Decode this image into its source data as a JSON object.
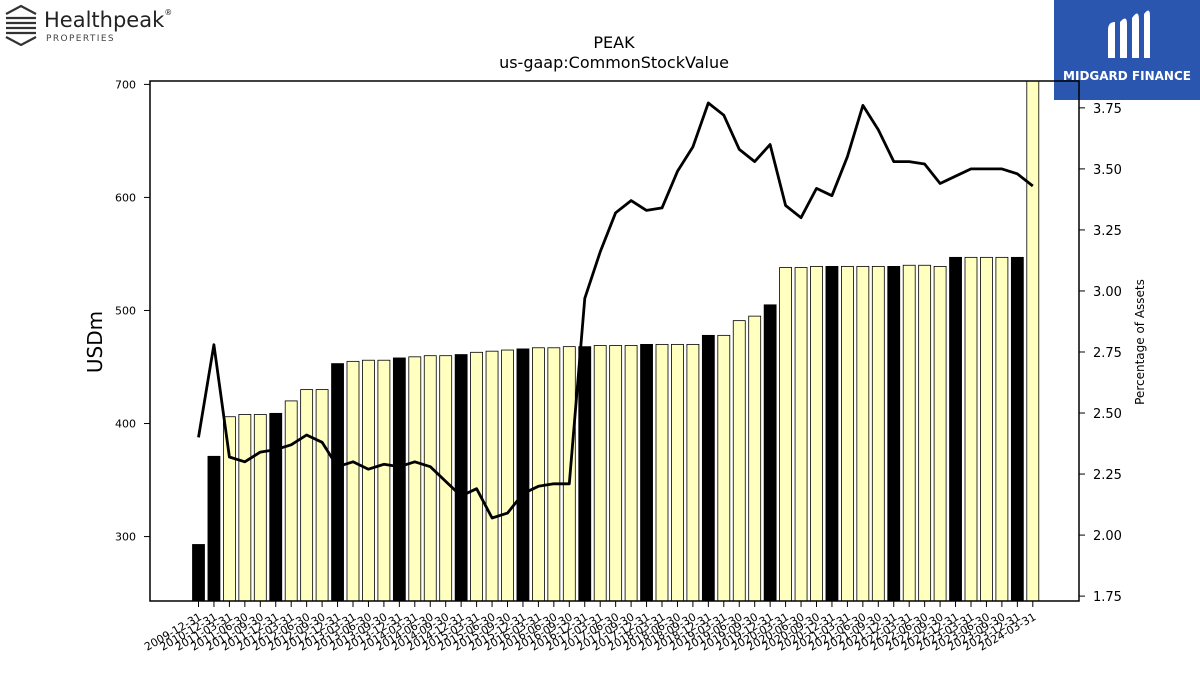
{
  "brand_left": {
    "name": "Healthpeak",
    "sub": "PROPERTIES",
    "reg": "®"
  },
  "brand_right": {
    "name": "MIDGARD FINANCE"
  },
  "chart_data": {
    "type": "bar",
    "title": "PEAK",
    "subtitle": "us-gaap:CommonStockValue",
    "ylabel": "USDm",
    "y2label": "Percentage of Assets",
    "ylim": [
      243,
      703
    ],
    "y2lim": [
      1.73,
      3.86
    ],
    "yticks": [
      300,
      400,
      500,
      600,
      700
    ],
    "y2ticks": [
      1.75,
      2.0,
      2.25,
      2.5,
      2.75,
      3.0,
      3.25,
      3.5,
      3.75
    ],
    "y2tick_labels": [
      "1.75",
      "2.00",
      "2.25",
      "2.50",
      "2.75",
      "3.00",
      "3.25",
      "3.50",
      "3.75"
    ],
    "colors": {
      "annual_bar": "#000000",
      "quarter_bar": "#ffffc0",
      "line": "#000000",
      "bar_edge": "#000000"
    },
    "categories": [
      "2009-12-31",
      "2010-12-31",
      "2011-03-31",
      "2011-06-30",
      "2011-09-30",
      "2011-12-31",
      "2012-03-31",
      "2012-06-30",
      "2012-09-30",
      "2012-12-31",
      "2013-03-31",
      "2013-06-30",
      "2013-09-30",
      "2013-12-31",
      "2014-03-31",
      "2014-06-30",
      "2014-09-30",
      "2014-12-31",
      "2015-03-31",
      "2015-06-30",
      "2015-09-30",
      "2015-12-31",
      "2016-03-31",
      "2016-06-30",
      "2016-09-30",
      "2016-12-31",
      "2017-03-31",
      "2017-06-30",
      "2017-09-30",
      "2017-12-31",
      "2018-03-31",
      "2018-06-30",
      "2018-09-30",
      "2018-12-31",
      "2019-03-31",
      "2019-06-30",
      "2019-09-30",
      "2019-12-31",
      "2020-03-31",
      "2020-06-30",
      "2020-09-30",
      "2020-12-31",
      "2021-03-31",
      "2021-06-30",
      "2021-09-30",
      "2021-12-31",
      "2022-03-31",
      "2022-06-30",
      "2022-09-30",
      "2022-12-31",
      "2023-03-31",
      "2023-06-30",
      "2023-09-30",
      "2023-12-31",
      "2024-03-31"
    ],
    "annual": [
      true,
      true,
      false,
      false,
      false,
      true,
      false,
      false,
      false,
      true,
      false,
      false,
      false,
      true,
      false,
      false,
      false,
      true,
      false,
      false,
      false,
      true,
      false,
      false,
      false,
      true,
      false,
      false,
      false,
      true,
      false,
      false,
      false,
      true,
      false,
      false,
      false,
      true,
      false,
      false,
      false,
      true,
      false,
      false,
      false,
      true,
      false,
      false,
      false,
      true,
      false,
      false,
      false,
      true,
      false
    ],
    "values": [
      293,
      371,
      406,
      408,
      408,
      409,
      420,
      430,
      430,
      453,
      455,
      456,
      456,
      458,
      459,
      460,
      460,
      461,
      463,
      464,
      465,
      466,
      467,
      467,
      468,
      468,
      469,
      469,
      469,
      470,
      470,
      470,
      470,
      478,
      478,
      491,
      495,
      505,
      538,
      538,
      539,
      539,
      539,
      539,
      539,
      539,
      540,
      540,
      539,
      547,
      547,
      547,
      547,
      547,
      703
    ],
    "pct": [
      2.4,
      2.78,
      2.32,
      2.3,
      2.34,
      2.35,
      2.37,
      2.41,
      2.38,
      2.28,
      2.3,
      2.27,
      2.29,
      2.28,
      2.3,
      2.28,
      2.22,
      2.16,
      2.19,
      2.07,
      2.09,
      2.17,
      2.2,
      2.21,
      2.21,
      2.97,
      3.16,
      3.32,
      3.37,
      3.33,
      3.34,
      3.49,
      3.59,
      3.77,
      3.72,
      3.58,
      3.53,
      3.6,
      3.35,
      3.3,
      3.42,
      3.39,
      3.55,
      3.76,
      3.66,
      3.53,
      3.53,
      3.52,
      3.44,
      3.47,
      3.5,
      3.5,
      3.5,
      3.48,
      3.43
    ]
  }
}
